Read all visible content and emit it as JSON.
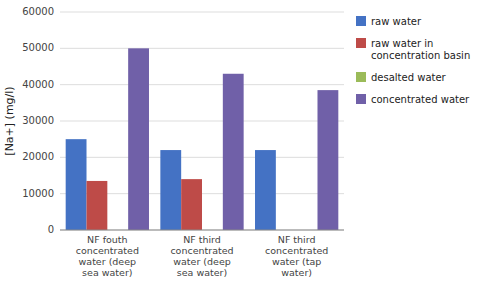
{
  "chart_data": {
    "type": "bar",
    "ylabel": "[Na+] (mg/l)",
    "categories": [
      "NF fouth\nconcentrated\nwater (deep\nsea water)",
      "NF third\nconcentrated\nwater (deep\nsea water)",
      "NF third\nconcentrated\nwater (tap\nwater)"
    ],
    "series": [
      {
        "name": "raw water",
        "color": "#4472C4",
        "values": [
          25000,
          22000,
          22000
        ]
      },
      {
        "name": "raw water in\nconcentration basin",
        "color": "#BE4B48",
        "values": [
          13500,
          14000,
          0
        ]
      },
      {
        "name": "desalted water",
        "color": "#9BBB59",
        "values": [
          0,
          0,
          0
        ]
      },
      {
        "name": "concentrated water",
        "color": "#7060A8",
        "values": [
          50000,
          43000,
          38500
        ]
      }
    ],
    "ylim": [
      0,
      60000
    ],
    "yticks": [
      0,
      10000,
      20000,
      30000,
      40000,
      50000,
      60000
    ],
    "grid": true,
    "legend": "right"
  }
}
